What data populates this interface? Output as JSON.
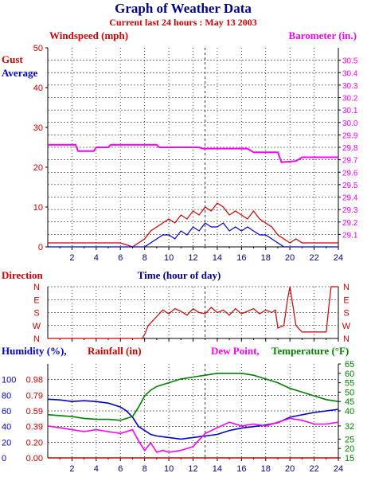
{
  "header": {
    "title": "Graph of Weather Data",
    "subtitle": "Current last 24 hours : May 13 2003"
  },
  "colors": {
    "navy": "#000080",
    "red": "#cc0000",
    "magenta": "#ff00ff",
    "green": "#008000",
    "blue": "#0000cc"
  },
  "chart_data": [
    {
      "type": "line",
      "id": "wind-barometer",
      "labels": {
        "left_axis": "Windspeed (mph)",
        "right_axis": "Barometer (in.)",
        "gust": "Gust",
        "average": "Average",
        "x_axis": "Time (hour of day)"
      },
      "xlim": [
        0,
        24
      ],
      "x_ticks": [
        "2",
        "4",
        "6",
        "8",
        "10",
        "12",
        "14",
        "16",
        "18",
        "20",
        "22",
        "24"
      ],
      "ylim_left": [
        0,
        50
      ],
      "y_ticks_left": [
        "0",
        "10",
        "20",
        "30",
        "40",
        "50"
      ],
      "ylim_right": [
        29.0,
        30.6
      ],
      "y_ticks_right": [
        "29.1",
        "29.2",
        "29.3",
        "29.4",
        "29.5",
        "29.6",
        "29.7",
        "29.8",
        "29.9",
        "30.0",
        "30.1",
        "30.2",
        "30.3",
        "30.4",
        "30.5"
      ],
      "series": [
        {
          "name": "Barometer",
          "color": "#ff00ff",
          "axis": "right",
          "x": [
            0,
            2.3,
            2.5,
            3.8,
            4.0,
            5.0,
            5.2,
            9.0,
            9.2,
            12.5,
            12.8,
            16.5,
            17.0,
            19.0,
            19.3,
            20.5,
            21.0,
            22.5,
            24.0
          ],
          "y": [
            29.82,
            29.82,
            29.77,
            29.77,
            29.8,
            29.8,
            29.82,
            29.82,
            29.8,
            29.8,
            29.79,
            29.79,
            29.76,
            29.76,
            29.68,
            29.69,
            29.72,
            29.72,
            29.72
          ]
        },
        {
          "name": "Gust",
          "color": "#cc0000",
          "axis": "left",
          "x": [
            0,
            1,
            2,
            3,
            4,
            5,
            6,
            7,
            8,
            8.5,
            9,
            9.5,
            10,
            10.5,
            11,
            11.5,
            12,
            12.5,
            13,
            13.5,
            14,
            14.5,
            15,
            15.5,
            16,
            16.5,
            17,
            17.5,
            18,
            18.5,
            19,
            19.5,
            20,
            20.5,
            21,
            22,
            23,
            24
          ],
          "y": [
            1,
            1,
            1,
            1,
            1,
            1,
            1,
            0,
            2,
            4,
            5,
            6,
            7,
            6,
            8,
            7,
            9,
            8,
            10,
            9,
            11,
            10,
            8,
            9,
            8,
            7,
            9,
            7,
            6,
            5,
            3,
            2,
            1,
            2,
            1,
            1,
            1,
            1
          ]
        },
        {
          "name": "Average",
          "color": "#0000cc",
          "axis": "left",
          "x": [
            0,
            8,
            8.5,
            9,
            9.5,
            10,
            10.5,
            11,
            11.5,
            12,
            12.5,
            13,
            13.5,
            14,
            14.5,
            15,
            15.5,
            16,
            16.5,
            17,
            17.5,
            18,
            18.5,
            19,
            19.5,
            24
          ],
          "y": [
            0,
            0,
            1,
            2,
            3,
            3,
            2,
            4,
            3,
            5,
            4,
            6,
            5,
            5,
            6,
            4,
            5,
            4,
            5,
            4,
            3,
            3,
            2,
            1,
            0,
            0
          ]
        }
      ]
    },
    {
      "type": "line",
      "id": "direction",
      "labels": {
        "left_axis": "Direction"
      },
      "xlim": [
        0,
        24
      ],
      "y_ticks": [
        "N",
        "W",
        "S",
        "E",
        "N"
      ],
      "series": [
        {
          "name": "Direction",
          "color": "#cc0000",
          "x": [
            0,
            7.8,
            8.0,
            8.3,
            9.0,
            9.5,
            10,
            10.5,
            11,
            11.5,
            12,
            12.5,
            13,
            13.5,
            14,
            14.5,
            15,
            15.5,
            16,
            16.5,
            17,
            17.5,
            18,
            18.5,
            18.8,
            19.0,
            19.5,
            19.8,
            20.0,
            20.5,
            21,
            22,
            23,
            23.2,
            23.4,
            24
          ],
          "y": [
            0,
            0,
            0.3,
            1.0,
            1.7,
            2.2,
            1.9,
            2.3,
            2.1,
            1.8,
            2.3,
            2.0,
            1.9,
            2.4,
            2.0,
            2.2,
            1.8,
            2.3,
            1.9,
            2.1,
            2.3,
            1.9,
            2.2,
            2.0,
            2.2,
            0.8,
            1.0,
            3.0,
            4.0,
            1.0,
            0.5,
            0.5,
            0.5,
            2.3,
            4.0,
            4.0
          ]
        }
      ]
    },
    {
      "type": "line",
      "id": "humidity-temperature",
      "labels": {
        "humidity": "Humidity (%),",
        "rainfall": "Rainfall (in)",
        "dewpoint": "Dew Point,",
        "temperature": "Temperature (°F)"
      },
      "xlim": [
        0,
        24
      ],
      "x_ticks": [
        "2",
        "4",
        "6",
        "8",
        "10",
        "12",
        "14",
        "16",
        "18",
        "20",
        "22",
        "24"
      ],
      "y_ticks_humidity": [
        "0",
        "20",
        "40",
        "60",
        "80",
        "100"
      ],
      "y_ticks_rainfall": [
        "0.00",
        "0.20",
        "0.39",
        "0.59",
        "0.79",
        "0.98"
      ],
      "ylim_right": [
        15,
        65
      ],
      "y_ticks_right": [
        "15",
        "20",
        "25",
        "32",
        "40",
        "45",
        "50",
        "55",
        "60",
        "65"
      ],
      "series": [
        {
          "name": "Humidity",
          "color": "#0000cc",
          "axis": "left",
          "x": [
            0,
            1,
            2,
            3,
            4,
            5,
            6,
            6.5,
            7.0,
            7.5,
            8,
            8.5,
            9,
            10,
            11,
            12,
            13,
            14,
            15,
            16,
            17,
            18,
            19,
            20,
            21,
            22,
            23,
            24
          ],
          "y": [
            75,
            74,
            72,
            73,
            72,
            70,
            65,
            60,
            52,
            40,
            35,
            30,
            28,
            26,
            24,
            26,
            28,
            30,
            35,
            38,
            40,
            42,
            45,
            52,
            55,
            58,
            60,
            62
          ]
        },
        {
          "name": "Dew Point",
          "color": "#ff00ff",
          "axis": "right",
          "x": [
            0,
            1,
            2,
            3,
            4,
            5,
            6,
            7,
            7.5,
            8,
            8.5,
            9,
            9.5,
            10,
            11,
            12,
            13,
            14,
            15,
            16,
            17,
            18,
            19,
            20,
            21,
            22,
            23,
            24
          ],
          "y": [
            32,
            31,
            30,
            29,
            30,
            29,
            28,
            30,
            24,
            19,
            23,
            18,
            19,
            18,
            19,
            21,
            28,
            31,
            34,
            32,
            33,
            32,
            34,
            36,
            35,
            33,
            33,
            34
          ]
        },
        {
          "name": "Temperature",
          "color": "#008000",
          "axis": "right",
          "x": [
            0,
            1,
            2,
            3,
            4,
            5,
            6,
            7,
            7.5,
            8,
            8.5,
            9,
            10,
            11,
            12,
            13,
            14,
            15,
            16,
            17,
            18,
            19,
            20,
            21,
            22,
            23,
            24
          ],
          "y": [
            38,
            37.5,
            37,
            36,
            35.5,
            35.5,
            35,
            37,
            42,
            48,
            51,
            53,
            55,
            57,
            58,
            59,
            60,
            60,
            60,
            59,
            57,
            55,
            52,
            50,
            48,
            46,
            45
          ]
        },
        {
          "name": "Rainfall",
          "color": "#cc0000",
          "axis": "left",
          "x": [
            0,
            24
          ],
          "y": [
            0,
            0
          ]
        }
      ]
    }
  ]
}
